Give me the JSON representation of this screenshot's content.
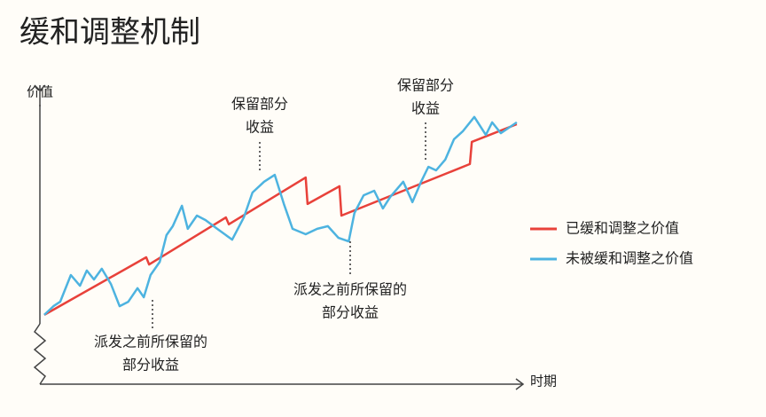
{
  "chart_data": {
    "type": "line",
    "title": "缓和调整机制",
    "ylabel": "价值",
    "xlabel": "时期",
    "xlim": [
      0,
      100
    ],
    "ylim": [
      0,
      100
    ],
    "legend": "right",
    "series": [
      {
        "name": "已缓和调整之价值",
        "color": "#e8413a",
        "x": [
          0.9,
          22.0,
          22.6,
          38.5,
          39.1,
          55.0,
          55.4,
          62.0,
          62.4,
          89.0,
          89.4,
          98.7
        ],
        "values": [
          23.1,
          42.3,
          39.9,
          55.6,
          53.3,
          68.9,
          60.1,
          66.0,
          56.2,
          73.4,
          80.8,
          86.7
        ]
      },
      {
        "name": "未被缓和调整之价值",
        "color": "#4db3e0",
        "x": [
          0.9,
          2.8,
          4.2,
          6.4,
          8.3,
          9.7,
          11.2,
          12.8,
          14.7,
          16.5,
          18.3,
          20.2,
          21.5,
          22.9,
          24.8,
          26.2,
          27.5,
          29.4,
          30.6,
          32.5,
          34.3,
          36.7,
          39.8,
          42.2,
          44.0,
          46.4,
          48.6,
          50.5,
          52.3,
          55.0,
          57.4,
          59.6,
          61.8,
          63.9,
          65.1,
          67.0,
          69.2,
          71.0,
          72.5,
          75.2,
          77.1,
          78.9,
          80.4,
          82.0,
          83.9,
          85.7,
          87.5,
          89.9,
          92.3,
          93.6,
          95.4,
          98.7
        ],
        "values": [
          23.1,
          26.0,
          27.5,
          36.4,
          32.8,
          37.9,
          34.9,
          38.5,
          33.4,
          26.0,
          27.5,
          32.0,
          29.0,
          36.4,
          40.8,
          49.7,
          52.7,
          59.5,
          51.8,
          56.2,
          54.7,
          51.8,
          48.2,
          55.6,
          63.9,
          67.5,
          69.8,
          60.1,
          51.8,
          50.0,
          51.8,
          52.7,
          48.8,
          47.6,
          57.1,
          63.0,
          64.5,
          58.6,
          62.4,
          67.5,
          60.7,
          67.5,
          72.5,
          71.3,
          74.9,
          81.7,
          84.3,
          89.1,
          83.1,
          87.3,
          83.7,
          87.3
        ]
      }
    ],
    "annotations": [
      {
        "lines": [
          "保留部分",
          "收益"
        ]
      },
      {
        "lines": [
          "保留部分",
          "收益"
        ]
      },
      {
        "lines": [
          "派发之前所保留的",
          "部分收益"
        ]
      },
      {
        "lines": [
          "派发之前所保留的",
          "部分收益"
        ]
      }
    ]
  }
}
